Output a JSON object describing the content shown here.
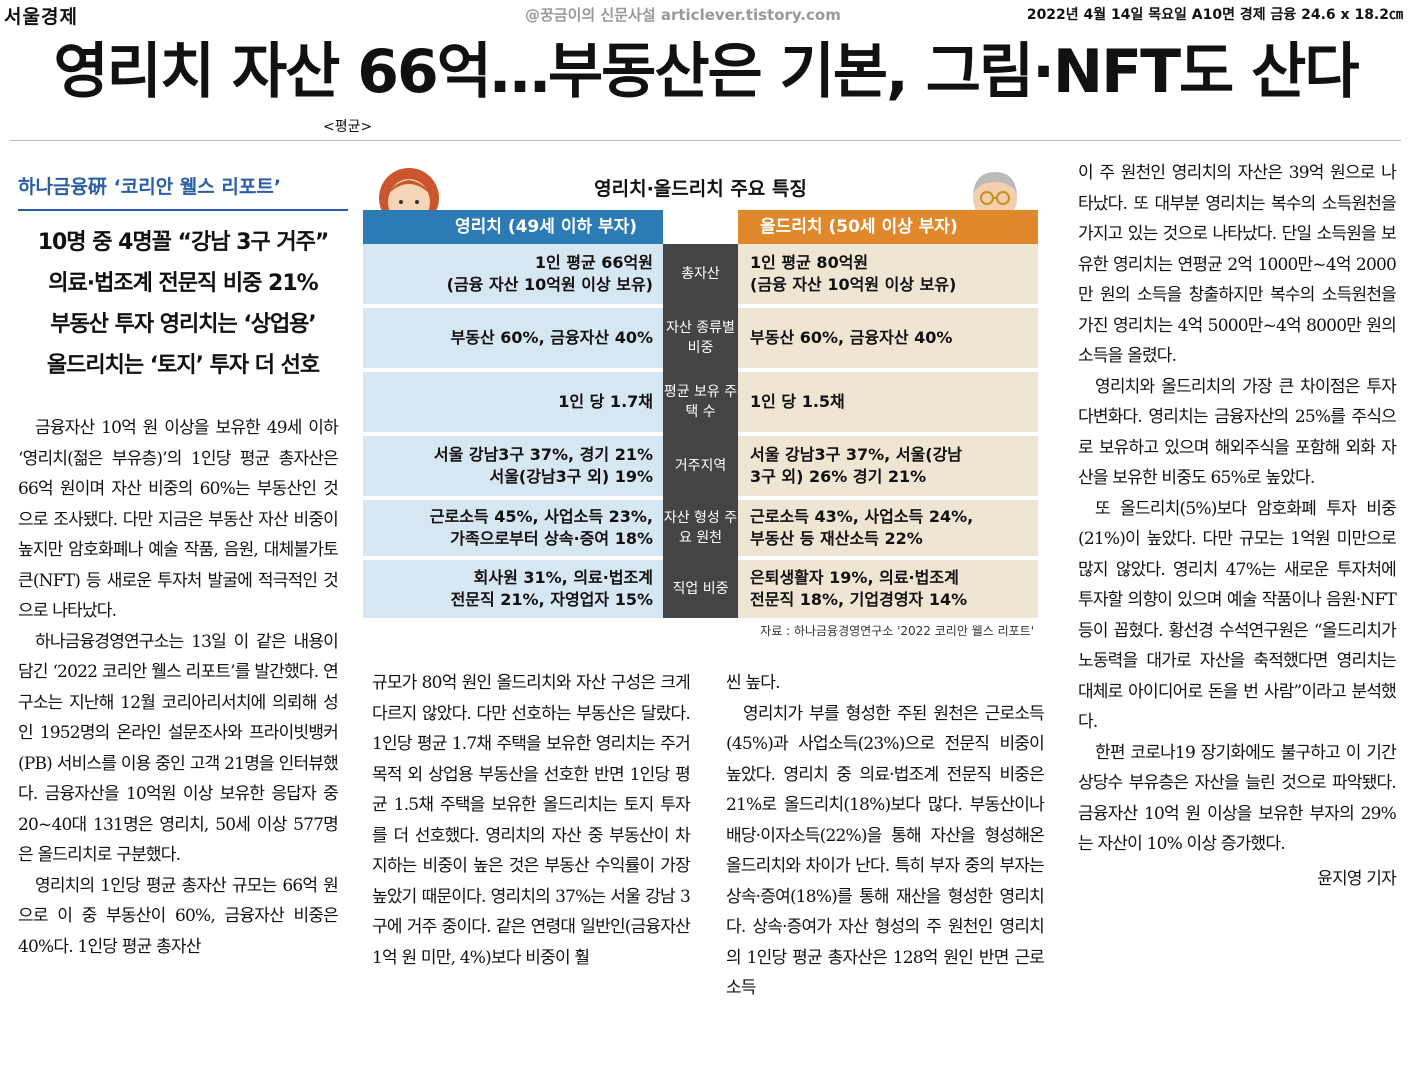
{
  "masthead": {
    "paper": "서울경제",
    "watermark": "@꿍금이의 신문사설 articlever.tistory.com",
    "dateline": "2022년 4월 14일 목요일 A10면 경제 금융 24.6 x 18.2㎝"
  },
  "headline": "영리치 자산 66억…부동산은 기본, 그림·NFT도 산다",
  "avg_note": "<평균>",
  "kicker": "하나금융硏 ‘코리안 웰스 리포트’",
  "subheads": [
    "10명 중 4명꼴 “강남 3구 거주”",
    "의료·법조계 전문직 비중 21%",
    "부동산 투자 영리치는 ‘상업용’",
    "올드리치는 ‘토지’ 투자 더 선호"
  ],
  "infographic": {
    "title": "영리치·올드리치 주요 특징",
    "left_header": "영리치 (49세 이하 부자)",
    "right_header": "올드리치 (50세 이상 부자)",
    "rows": [
      {
        "label": "총자산",
        "left": [
          "1인 평균 66억원",
          "(금융 자산 10억원 이상 보유)"
        ],
        "right": [
          "1인 평균 80억원",
          "(금융 자산 10억원 이상 보유)"
        ]
      },
      {
        "label": "자산 종류별 비중",
        "left": [
          "부동산 60%, 금융자산 40%"
        ],
        "right": [
          "부동산 60%, 금융자산 40%"
        ]
      },
      {
        "label": "평균 보유 주택 수",
        "left": [
          "1인 당 1.7채"
        ],
        "right": [
          "1인 당 1.5채"
        ]
      },
      {
        "label": "거주지역",
        "left": [
          "서울 강남3구 37%, 경기 21%",
          "서울(강남3구 외) 19%"
        ],
        "right": [
          "서울 강남3구 37%, 서울(강남",
          "3구 외) 26% 경기 21%"
        ]
      },
      {
        "label": "자산 형성 주요 원천",
        "left": [
          "근로소득 45%, 사업소득 23%,",
          "가족으로부터 상속·증여 18%"
        ],
        "right": [
          "근로소득 43%, 사업소득 24%,",
          "부동산 등 재산소득 22%"
        ]
      },
      {
        "label": "직업 비중",
        "left": [
          "회사원 31%, 의료·법조계",
          "전문직 21%, 자영업자 15%"
        ],
        "right": [
          "은퇴생활자 19%, 의료·법조계",
          "전문직 18%, 기업경영자 14%"
        ]
      }
    ],
    "source": "자료 : 하나금융경영연구소 '2022 코리안 웰스 리포트'"
  },
  "body": {
    "col1": [
      "금융자산 10억 원 이상을 보유한 49세 이하 ‘영리치(젊은 부유층)’의 1인당 평균 총자산은 66억 원이며 자산 비중의 60%는 부동산인 것으로 조사됐다. 다만 지금은 부동산 자산 비중이 높지만 암호화폐나 예술 작품, 음원, 대체불가토큰(NFT) 등 새로운 투자처 발굴에 적극적인 것으로 나타났다.",
      "하나금융경영연구소는 13일 이 같은 내용이 담긴 ‘2022 코리안 웰스 리포트’를 발간했다. 연구소는 지난해 12월 코리아리서치에 의뢰해 성인 1952명의 온라인 설문조사와 프라이빗뱅커(PB) 서비스를 이용 중인 고객 21명을 인터뷰했다. 금융자산을 10억원 이상 보유한 응답자 중 20~40대 131명은 영리치, 50세 이상 577명은 올드리치로 구분했다.",
      "영리치의 1인당 평균 총자산 규모는 66억 원으로 이 중 부동산이 60%, 금융자산 비중은 40%다. 1인당 평균 총자산"
    ],
    "col2": [
      "규모가 80억 원인 올드리치와 자산 구성은 크게 다르지 않았다. 다만 선호하는 부동산은 달랐다. 1인당 평균 1.7채 주택을 보유한 영리치는 주거 목적 외 상업용 부동산을 선호한 반면 1인당 평균 1.5채 주택을 보유한 올드리치는 토지 투자를 더 선호했다. 영리치의 자산 중 부동산이 차지하는 비중이 높은 것은 부동산 수익률이 가장 높았기 때문이다. 영리치의 37%는 서울 강남 3구에 거주 중이다. 같은 연령대 일반인(금융자산 1억 원 미만, 4%)보다 비중이 훨"
    ],
    "col3": [
      "씬 높다.",
      "영리치가 부를 형성한 주된 원천은 근로소득(45%)과 사업소득(23%)으로 전문직 비중이 높았다. 영리치 중 의료·법조계 전문직 비중은 21%로 올드리치(18%)보다 많다. 부동산이나 배당·이자소득(22%)을 통해 자산을 형성해온 올드리치와 차이가 난다. 특히 부자 중의 부자는 상속·증여(18%)를 통해 재산을 형성한 영리치다. 상속·증여가 자산 형성의 주 원천인 영리치의 1인당 평균 총자산은 128억 원인 반면 근로소득"
    ],
    "col4": [
      "이 주 원천인 영리치의 자산은 39억 원으로 나타났다. 또 대부분 영리치는 복수의 소득원천을 가지고 있는 것으로 나타났다. 단일 소득원을 보유한 영리치는 연평균 2억 1000만~4억 2000만 원의 소득을 창출하지만 복수의 소득원천을 가진 영리치는 4억 5000만~4억 8000만 원의 소득을 올렸다.",
      "영리치와 올드리치의 가장 큰 차이점은 투자 다변화다. 영리치는 금융자산의 25%를 주식으로 보유하고 있으며 해외주식을 포함해 외화 자산을 보유한 비중도 65%로 높았다.",
      "또 올드리치(5%)보다 암호화폐 투자 비중(21%)이 높았다. 다만 규모는 1억원 미만으로 많지 않았다. 영리치 47%는 새로운 투자처에 투자할 의향이 있으며 예술 작품이나 음원·NFT 등이 꼽혔다. 황선경 수석연구원은 “올드리치가 노동력을 대가로 자산을 축적했다면 영리치는 대체로 아이디어로 돈을 번 사람”이라고 분석했다.",
      "한편 코로나19 장기화에도 불구하고 이 기간 상당수 부유층은 자산을 늘린 것으로 파악됐다. 금융자산 10억 원 이상을 보유한 부자의 29%는 자산이 10% 이상 증가했다."
    ],
    "byline": "윤지영 기자"
  },
  "colors": {
    "young_header": "#2d7bb5",
    "young_cell": "#d7e7f1",
    "old_header": "#e0892c",
    "old_cell": "#efe5d3",
    "label_col": "#444444",
    "kicker": "#2a5ea8"
  }
}
